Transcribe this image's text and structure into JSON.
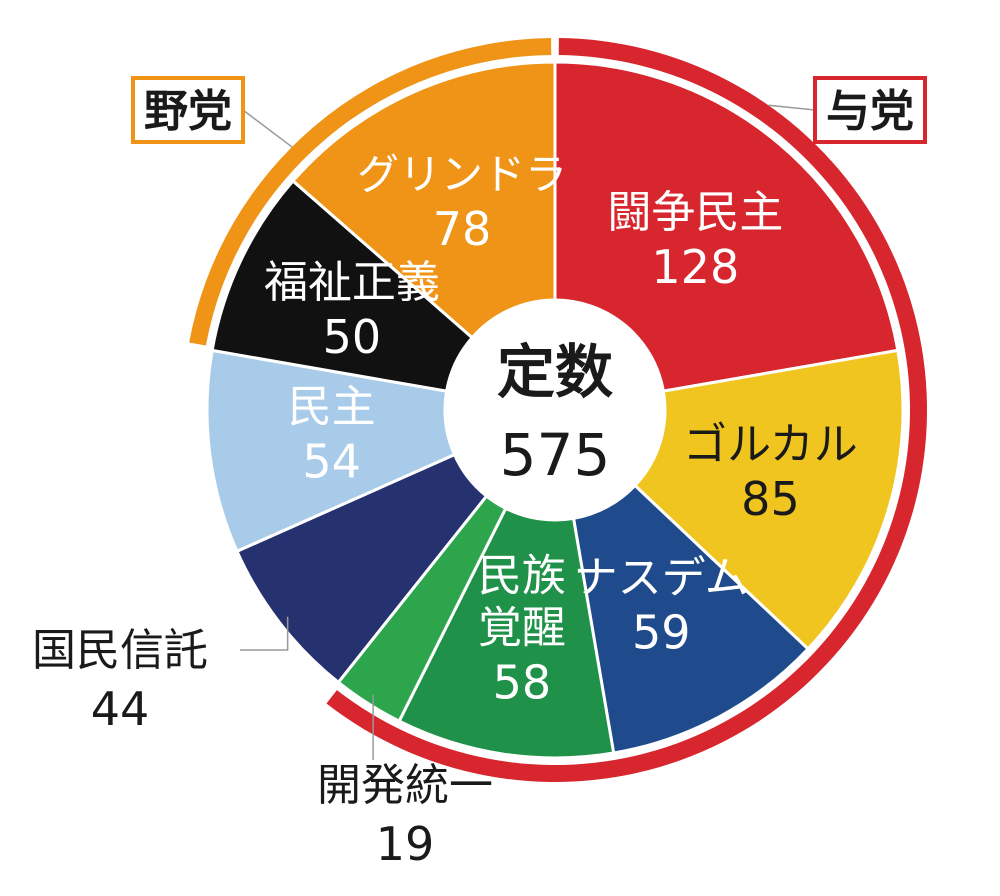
{
  "chart_data": {
    "type": "pie",
    "center": {
      "title": "定数",
      "total": "575"
    },
    "slices": [
      {
        "name": "闘争民主",
        "value": 128,
        "value_label": "128",
        "color": "#d7262d",
        "label_color": "#ffffff"
      },
      {
        "name": "ゴルカル",
        "value": 85,
        "value_label": "85",
        "color": "#f0c51f",
        "label_color": "#1a1a1a"
      },
      {
        "name": "ナスデム",
        "value": 59,
        "value_label": "59",
        "color": "#1f4a8c",
        "label_color": "#ffffff"
      },
      {
        "name": "民族\n覚醒",
        "value": 58,
        "value_label": "58",
        "color": "#1f9148",
        "label_color": "#ffffff"
      },
      {
        "name": "開発統一",
        "value": 19,
        "value_label": "19",
        "color": "#2ca54d",
        "label_color": "#1a1a1a",
        "outside": true
      },
      {
        "name": "国民信託",
        "value": 44,
        "value_label": "44",
        "color": "#26316f",
        "label_color": "#1a1a1a",
        "outside": true
      },
      {
        "name": "民主",
        "value": 54,
        "value_label": "54",
        "color": "#a7cbe8",
        "label_color": "#ffffff"
      },
      {
        "name": "福祉正義",
        "value": 50,
        "value_label": "50",
        "color": "#111111",
        "label_color": "#ffffff"
      },
      {
        "name": "グリンドラ",
        "value": 78,
        "value_label": "78",
        "color": "#ef9416",
        "label_color": "#ffffff"
      }
    ],
    "groups": [
      {
        "label": "与党",
        "color": "#d7262d",
        "slices": [
          "闘争民主",
          "ゴルカル",
          "ナスデム",
          "民族\n覚醒",
          "開発統一"
        ]
      },
      {
        "label": "野党",
        "color": "#ef9416",
        "slices": [
          "国民信託",
          "民主",
          "福祉正義",
          "グリンドラ"
        ]
      }
    ]
  }
}
